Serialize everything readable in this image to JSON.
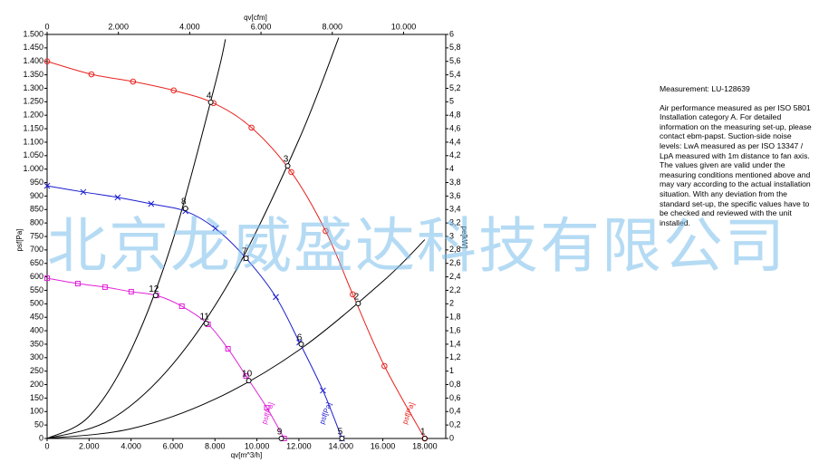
{
  "chart_data": {
    "type": "line",
    "title": "qv[cfm]",
    "x_label": "qv[m^3/h]",
    "y_label": "psf[Pa]",
    "y2_label": "pe[kW]",
    "xlim": [
      0,
      19000
    ],
    "xticks": [
      0,
      {
        "value": 2000,
        "label": "2.000"
      },
      {
        "value": 4000,
        "label": "4.000"
      },
      {
        "value": 6000,
        "label": "6.000"
      },
      {
        "value": 8000,
        "label": "8.000"
      },
      {
        "value": 10000,
        "label": "10.000"
      },
      {
        "value": 12000,
        "label": "12.000"
      },
      {
        "value": 14000,
        "label": "14.000"
      },
      {
        "value": 16000,
        "label": "16.000"
      },
      {
        "value": 18000,
        "label": "18.000"
      }
    ],
    "x2lim": [
      0,
      11183
    ],
    "x2ticks": [
      0,
      {
        "value": 2000,
        "label": "2.000"
      },
      {
        "value": 4000,
        "label": "4.000"
      },
      {
        "value": 6000,
        "label": "6.000"
      },
      {
        "value": 8000,
        "label": "8.000"
      },
      {
        "value": 10000,
        "label": "10.000"
      }
    ],
    "ylim": [
      0,
      1500
    ],
    "yticks": [
      0,
      50,
      100,
      150,
      200,
      250,
      300,
      350,
      400,
      450,
      500,
      550,
      600,
      650,
      700,
      750,
      800,
      850,
      900,
      950,
      {
        "value": 1000,
        "label": "1.000"
      },
      {
        "value": 1050,
        "label": "1.050"
      },
      {
        "value": 1100,
        "label": "1.100"
      },
      {
        "value": 1150,
        "label": "1.150"
      },
      {
        "value": 1200,
        "label": "1.200"
      },
      {
        "value": 1250,
        "label": "1.250"
      },
      {
        "value": 1300,
        "label": "1.300"
      },
      {
        "value": 1350,
        "label": "1.350"
      },
      {
        "value": 1400,
        "label": "1.400"
      },
      {
        "value": 1450,
        "label": "1.450"
      },
      {
        "value": 1500,
        "label": "1.500"
      }
    ],
    "y2lim": [
      0,
      6
    ],
    "y2ticks": [
      0,
      {
        "value": 0.2,
        "label": "0,2"
      },
      {
        "value": 0.4,
        "label": "0,4"
      },
      {
        "value": 0.6,
        "label": "0,6"
      },
      {
        "value": 0.8,
        "label": "0,8"
      },
      1,
      {
        "value": 1.2,
        "label": "1,2"
      },
      {
        "value": 1.4,
        "label": "1,4"
      },
      {
        "value": 1.6,
        "label": "1,6"
      },
      {
        "value": 1.8,
        "label": "1,8"
      },
      2,
      {
        "value": 2.2,
        "label": "2,2"
      },
      {
        "value": 2.4,
        "label": "2,4"
      },
      {
        "value": 2.6,
        "label": "2,6"
      },
      {
        "value": 2.8,
        "label": "2,8"
      },
      3,
      {
        "value": 3.2,
        "label": "3,2"
      },
      {
        "value": 3.4,
        "label": "3,4"
      },
      {
        "value": 3.6,
        "label": "3,6"
      },
      {
        "value": 3.8,
        "label": "3,8"
      },
      4,
      {
        "value": 4.2,
        "label": "4,2"
      },
      {
        "value": 4.4,
        "label": "4,4"
      },
      {
        "value": 4.6,
        "label": "4,6"
      },
      {
        "value": 4.8,
        "label": "4,8"
      },
      5,
      {
        "value": 5.2,
        "label": "5,2"
      },
      {
        "value": 5.4,
        "label": "5,4"
      },
      {
        "value": 5.6,
        "label": "5,6"
      },
      {
        "value": 5.8,
        "label": "5,8"
      },
      6
    ],
    "series": [
      {
        "name": "psf[Pa]",
        "color": "#e8231f",
        "marker": "circle",
        "x": [
          0,
          2112,
          4095,
          6034,
          7931,
          9741,
          11638,
          13276,
          14569,
          16078,
          18000
        ],
        "values": [
          1400,
          1352,
          1325,
          1292,
          1245,
          1154,
          989,
          770,
          535,
          269,
          0
        ]
      },
      {
        "name": "psf[Pa]",
        "color": "#1c1cd0",
        "marker": "cross",
        "x": [
          0,
          1724,
          3362,
          4957,
          6595,
          8017,
          9483,
          10905,
          12026,
          13147,
          14052
        ],
        "values": [
          938,
          915,
          895,
          871,
          844,
          780,
          669,
          525,
          357,
          178,
          0
        ]
      },
      {
        "name": "psf[Pa]",
        "color": "#e020d8",
        "marker": "square",
        "x": [
          0,
          1466,
          2759,
          4009,
          5215,
          6422,
          7672,
          8621,
          9483,
          10474,
          11300
        ],
        "values": [
          595,
          575,
          562,
          545,
          531,
          491,
          424,
          333,
          232,
          114,
          0
        ]
      }
    ],
    "system_curves": [
      {
        "color": "#000000",
        "x": [
          0,
          2000,
          4000,
          6000,
          8000,
          8500
        ],
        "values": [
          0,
          82,
          328,
          738,
          1313,
          1482
        ]
      },
      {
        "color": "#000000",
        "x": [
          0,
          3000,
          6000,
          9000,
          12000,
          13900
        ],
        "values": [
          0,
          69,
          277,
          624,
          1109,
          1488
        ]
      },
      {
        "color": "#000000",
        "x": [
          0,
          4000,
          8000,
          12000,
          16000,
          18000
        ],
        "values": [
          0,
          36,
          146,
          328,
          583,
          738
        ]
      }
    ],
    "points": [
      {
        "label": "1",
        "x": 18000,
        "y": 0
      },
      {
        "label": "2",
        "x": 14828,
        "y": 501
      },
      {
        "label": "3",
        "x": 11466,
        "y": 1012
      },
      {
        "label": "4",
        "x": 7800,
        "y": 1248
      },
      {
        "label": "5",
        "x": 14052,
        "y": 0
      },
      {
        "label": "6",
        "x": 12112,
        "y": 350
      },
      {
        "label": "7",
        "x": 9483,
        "y": 669
      },
      {
        "label": "8",
        "x": 6595,
        "y": 854
      },
      {
        "label": "9",
        "x": 11164,
        "y": 0
      },
      {
        "label": "10",
        "x": 9612,
        "y": 215
      },
      {
        "label": "11",
        "x": 7586,
        "y": 427
      },
      {
        "label": "12",
        "x": 5172,
        "y": 531
      }
    ]
  },
  "note": {
    "heading": "Measurement: LU-128639",
    "text": "Air performance measured as per ISO 5801 Installation category A. For detailed information on the measuring set-up, please contact ebm-papst. Suction-side noise levels: LwA measured as per ISO 13347 / LpA measured with 1m distance to fan axis. The values given are valid under the measuring conditions mentioned above and may vary according to the actual installation situation. With any deviation from the standard set-up, the specific values have to be checked and reviewed with the unit installed."
  },
  "watermark": "北京龙威盛达科技有限公司"
}
